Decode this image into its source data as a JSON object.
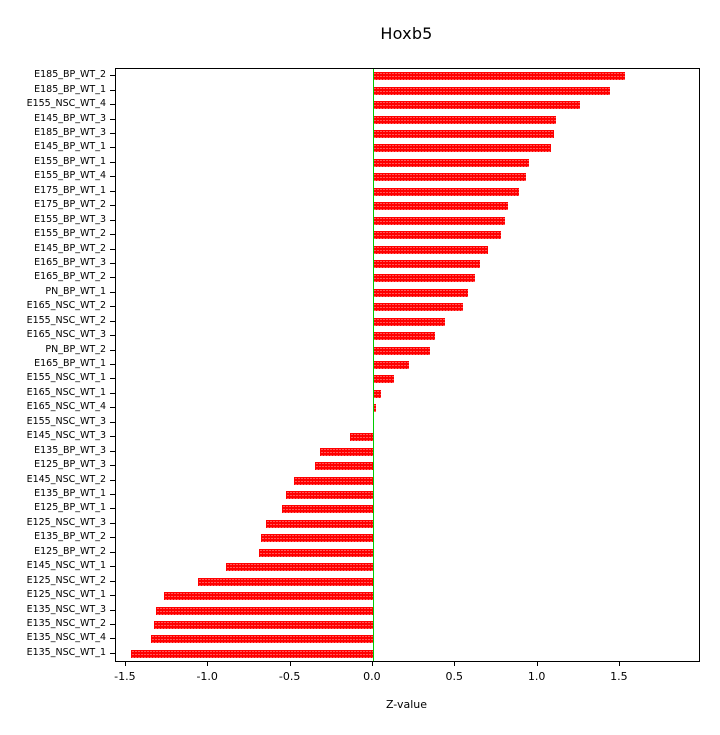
{
  "chart_data": {
    "type": "bar",
    "orientation": "horizontal",
    "title": "Hoxb5",
    "xlabel": "Z-value",
    "ylabel": "",
    "xlim": [
      -1.56,
      1.98
    ],
    "x_ticks": [
      -1.5,
      -1.0,
      -0.5,
      0.0,
      0.5,
      1.0,
      1.5
    ],
    "x_tick_labels": [
      "-1.5",
      "-1.0",
      "-0.5",
      "0.0",
      "0.5",
      "1.0",
      "1.5"
    ],
    "grid": false,
    "legend": "none",
    "bar_color": "#ff0000",
    "zero_line": {
      "x": 0.0,
      "color": "#00cc00"
    },
    "categories": [
      "E185_BP_WT_2",
      "E185_BP_WT_1",
      "E155_NSC_WT_4",
      "E145_BP_WT_3",
      "E185_BP_WT_3",
      "E145_BP_WT_1",
      "E155_BP_WT_1",
      "E155_BP_WT_4",
      "E175_BP_WT_1",
      "E175_BP_WT_2",
      "E155_BP_WT_3",
      "E155_BP_WT_2",
      "E145_BP_WT_2",
      "E165_BP_WT_3",
      "E165_BP_WT_2",
      "PN_BP_WT_1",
      "E165_NSC_WT_2",
      "E155_NSC_WT_2",
      "E165_NSC_WT_3",
      "PN_BP_WT_2",
      "E165_BP_WT_1",
      "E155_NSC_WT_1",
      "E165_NSC_WT_1",
      "E165_NSC_WT_4",
      "E155_NSC_WT_3",
      "E145_NSC_WT_3",
      "E135_BP_WT_3",
      "E125_BP_WT_3",
      "E145_NSC_WT_2",
      "E135_BP_WT_1",
      "E125_BP_WT_1",
      "E125_NSC_WT_3",
      "E135_BP_WT_2",
      "E125_BP_WT_2",
      "E145_NSC_WT_1",
      "E125_NSC_WT_2",
      "E125_NSC_WT_1",
      "E135_NSC_WT_3",
      "E135_NSC_WT_2",
      "E135_NSC_WT_4",
      "E135_NSC_WT_1"
    ],
    "values": [
      1.53,
      1.44,
      1.26,
      1.11,
      1.1,
      1.08,
      0.95,
      0.93,
      0.89,
      0.82,
      0.8,
      0.78,
      0.7,
      0.65,
      0.62,
      0.58,
      0.55,
      0.44,
      0.38,
      0.35,
      0.22,
      0.13,
      0.05,
      0.02,
      0.01,
      -0.14,
      -0.32,
      -0.35,
      -0.48,
      -0.53,
      -0.55,
      -0.65,
      -0.68,
      -0.69,
      -0.89,
      -1.06,
      -1.27,
      -1.32,
      -1.33,
      -1.35,
      -1.47
    ]
  }
}
